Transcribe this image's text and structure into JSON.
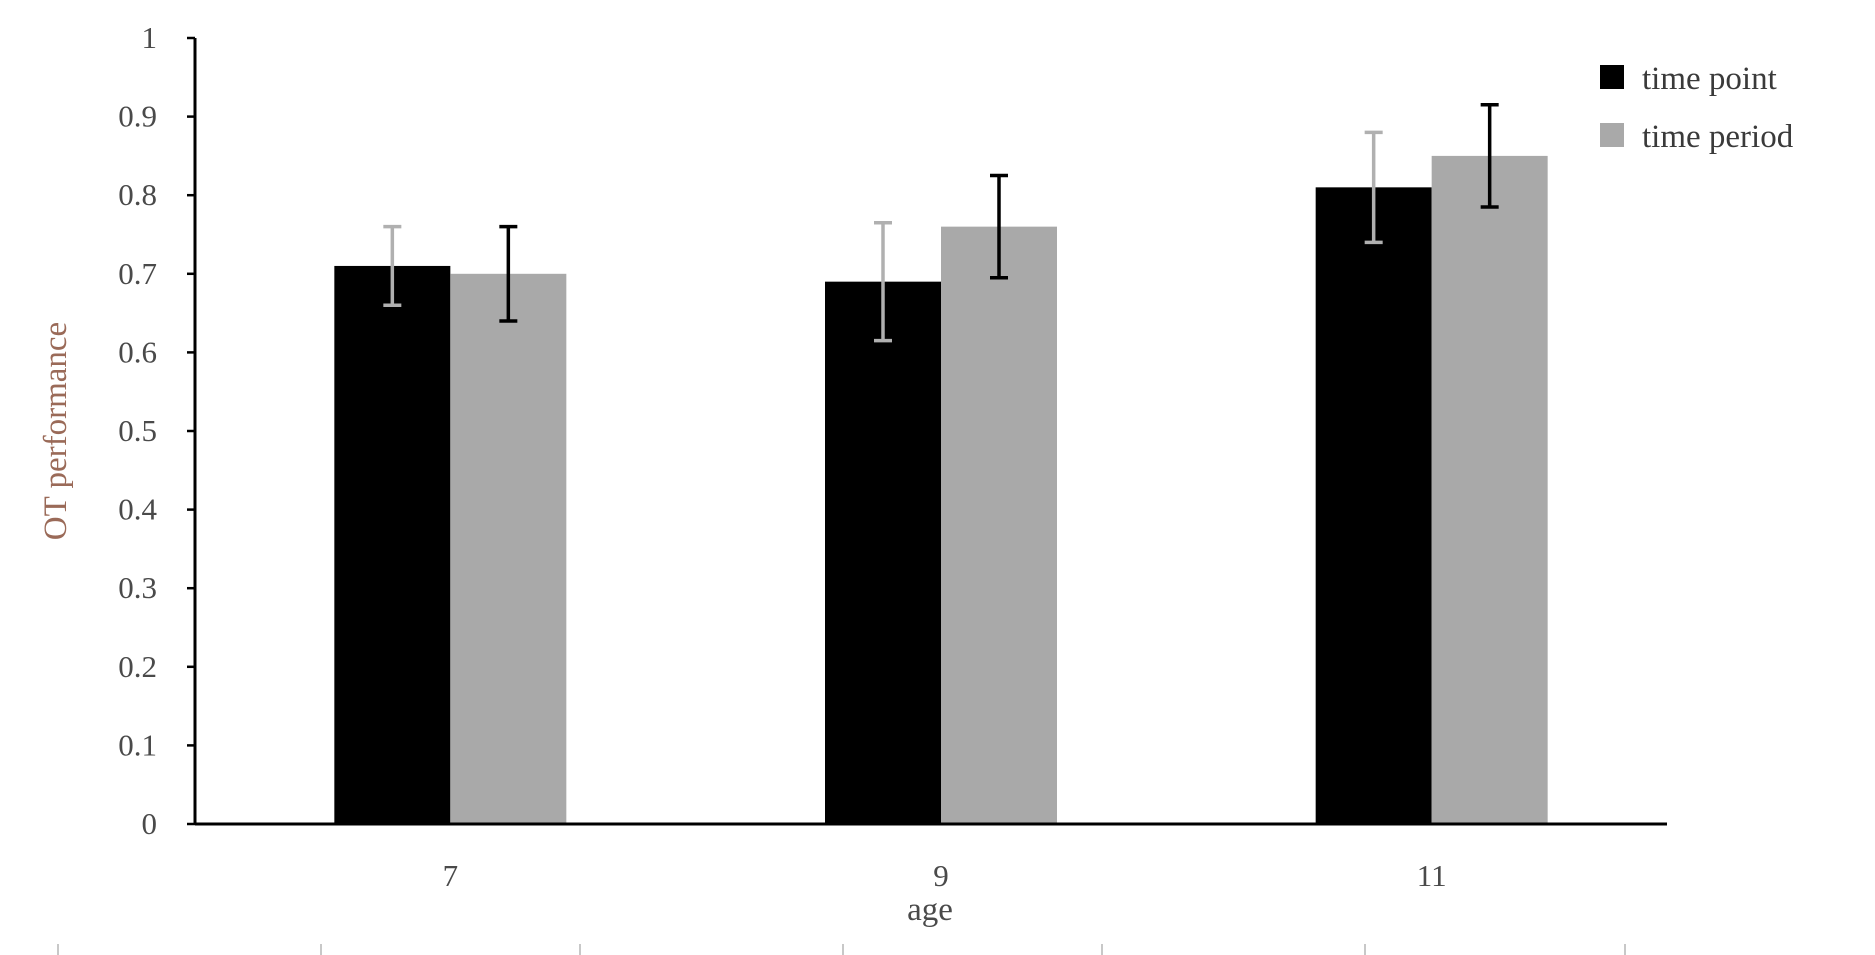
{
  "chart_data": {
    "type": "bar",
    "categories": [
      "7",
      "9",
      "11"
    ],
    "series": [
      {
        "name": "time point",
        "color": "#000000",
        "error_color": "#b0b0b0",
        "values": [
          0.71,
          0.69,
          0.81
        ],
        "errors": [
          0.05,
          0.075,
          0.07
        ]
      },
      {
        "name": "time period",
        "color": "#a9a9a9",
        "error_color": "#000000",
        "values": [
          0.7,
          0.76,
          0.85
        ],
        "errors": [
          0.06,
          0.065,
          0.065
        ]
      }
    ],
    "title": "",
    "xlabel": "age",
    "ylabel": "OT performance",
    "ylim": [
      0,
      1
    ],
    "yticks": [
      "0",
      "0.1",
      "0.2",
      "0.3",
      "0.4",
      "0.5",
      "0.6",
      "0.7",
      "0.8",
      "0.9",
      "1"
    ],
    "grid": false,
    "legend_position": "top-right"
  }
}
